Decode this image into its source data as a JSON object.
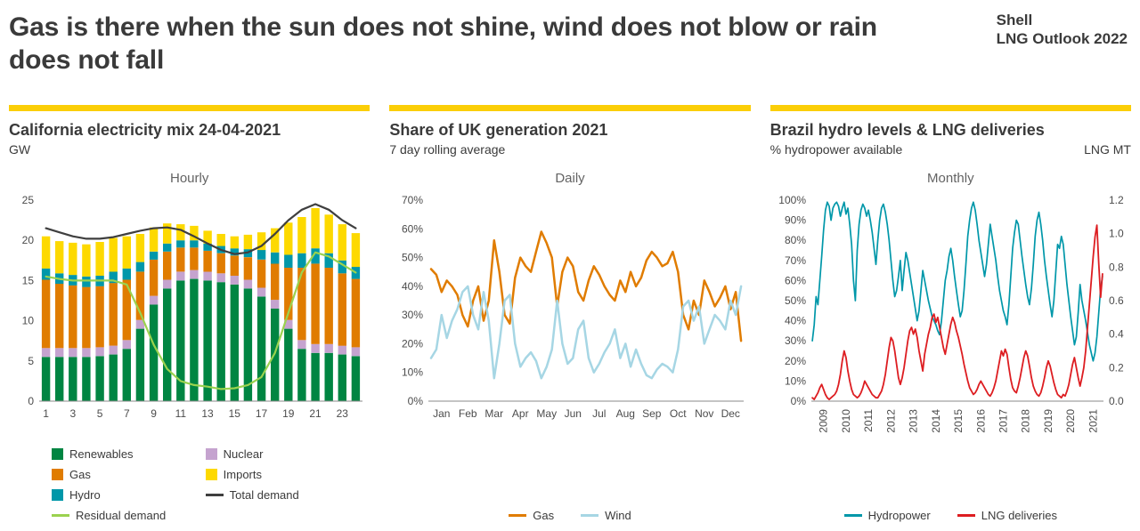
{
  "header": {
    "title": "Gas is there when the sun does not shine, wind does not blow or rain does not fall",
    "brand_line1": "Shell",
    "brand_line2": "LNG Outlook 2022"
  },
  "colors": {
    "accent_yellow": "#FBCE07",
    "renewables": "#008542",
    "nuclear": "#C5A3CF",
    "gas": "#E07C00",
    "hydro": "#0097A9",
    "imports": "#FDD900",
    "total_demand": "#3f3f3f",
    "residual_demand": "#9BD24F",
    "wind": "#A6D6E4",
    "hydropower": "#0097A9",
    "lng": "#DD1D21"
  },
  "chart_data": [
    {
      "id": "california-mix",
      "type": "bar",
      "title": "California electricity mix 24-04-2021",
      "subtitle": "GW",
      "panel_label": "Hourly",
      "x_count": 24,
      "categories": [
        1,
        2,
        3,
        4,
        5,
        6,
        7,
        8,
        9,
        10,
        11,
        12,
        13,
        14,
        15,
        16,
        17,
        18,
        19,
        20,
        21,
        22,
        23,
        24
      ],
      "ylim": [
        0,
        25
      ],
      "yticks": [
        [
          0,
          "0"
        ],
        [
          5,
          "5"
        ],
        [
          10,
          "10"
        ],
        [
          15,
          "15"
        ],
        [
          20,
          "20"
        ],
        [
          25,
          "25"
        ]
      ],
      "xlabels": [
        [
          0,
          "1"
        ],
        [
          2,
          "3"
        ],
        [
          4,
          "5"
        ],
        [
          6,
          "7"
        ],
        [
          8,
          "9"
        ],
        [
          10,
          "11"
        ],
        [
          12,
          "13"
        ],
        [
          14,
          "15"
        ],
        [
          16,
          "17"
        ],
        [
          18,
          "19"
        ],
        [
          20,
          "21"
        ],
        [
          22,
          "23"
        ]
      ],
      "series": [
        {
          "name": "Renewables",
          "kind": "bar",
          "color": "renewables",
          "values": [
            5.5,
            5.5,
            5.5,
            5.5,
            5.6,
            5.8,
            6.5,
            9.0,
            12.0,
            14.0,
            15.0,
            15.2,
            15.0,
            14.8,
            14.5,
            14.0,
            13.0,
            11.5,
            9.0,
            6.5,
            6.0,
            6.0,
            5.8,
            5.6
          ]
        },
        {
          "name": "Nuclear",
          "kind": "bar",
          "color": "nuclear",
          "values": [
            1.1,
            1.1,
            1.1,
            1.1,
            1.1,
            1.1,
            1.1,
            1.1,
            1.1,
            1.1,
            1.1,
            1.1,
            1.1,
            1.1,
            1.1,
            1.1,
            1.1,
            1.1,
            1.1,
            1.1,
            1.1,
            1.1,
            1.1,
            1.1
          ]
        },
        {
          "name": "Gas",
          "kind": "bar",
          "color": "gas",
          "values": [
            8.5,
            8.0,
            7.8,
            7.6,
            7.6,
            7.8,
            7.5,
            6.0,
            4.5,
            3.5,
            3.0,
            2.8,
            2.6,
            2.5,
            2.5,
            2.8,
            3.5,
            4.5,
            6.5,
            9.0,
            10.0,
            9.5,
            9.0,
            8.5
          ]
        },
        {
          "name": "Hydro",
          "kind": "bar",
          "color": "hydro",
          "values": [
            1.4,
            1.3,
            1.3,
            1.3,
            1.3,
            1.4,
            1.4,
            1.2,
            1.0,
            1.0,
            0.9,
            0.9,
            0.9,
            0.9,
            0.9,
            1.0,
            1.2,
            1.4,
            1.6,
            1.8,
            1.9,
            1.8,
            1.6,
            1.5
          ]
        },
        {
          "name": "Imports",
          "kind": "bar",
          "color": "imports",
          "values": [
            4.0,
            4.0,
            4.0,
            4.0,
            4.2,
            4.2,
            4.0,
            3.5,
            3.0,
            2.5,
            2.0,
            1.8,
            1.6,
            1.5,
            1.5,
            1.8,
            2.2,
            3.0,
            4.0,
            4.5,
            5.0,
            4.8,
            4.5,
            4.2
          ]
        },
        {
          "name": "Total demand",
          "kind": "line",
          "color": "total_demand",
          "width": 2.2,
          "values": [
            21.5,
            21.0,
            20.5,
            20.2,
            20.2,
            20.4,
            20.8,
            21.2,
            21.5,
            21.6,
            21.3,
            20.5,
            19.6,
            18.8,
            18.3,
            18.5,
            19.3,
            20.8,
            22.5,
            23.8,
            24.5,
            23.8,
            22.5,
            21.5
          ]
        },
        {
          "name": "Residual demand",
          "kind": "line",
          "color": "residual_demand",
          "width": 2.2,
          "values": [
            15.5,
            15.2,
            15.0,
            15.0,
            15.0,
            15.0,
            14.5,
            11.0,
            7.0,
            4.0,
            2.5,
            2.0,
            1.8,
            1.5,
            1.6,
            2.0,
            3.0,
            6.0,
            11.0,
            16.0,
            18.5,
            18.0,
            17.0,
            16.0
          ]
        }
      ],
      "legend": [
        {
          "label": "Renewables",
          "color": "renewables",
          "swatch": "square"
        },
        {
          "label": "Nuclear",
          "color": "nuclear",
          "swatch": "square"
        },
        {
          "label": "Gas",
          "color": "gas",
          "swatch": "square"
        },
        {
          "label": "Imports",
          "color": "imports",
          "swatch": "square"
        },
        {
          "label": "Hydro",
          "color": "hydro",
          "swatch": "square"
        },
        {
          "label": "Total demand",
          "color": "total_demand",
          "swatch": "line"
        },
        {
          "label": "Residual demand",
          "color": "residual_demand",
          "swatch": "line"
        }
      ]
    },
    {
      "id": "uk-generation-share",
      "type": "line",
      "title": "Share of UK generation 2021",
      "subtitle": "7 day rolling average",
      "panel_label": "Daily",
      "x_count": 60,
      "ylim": [
        0,
        70
      ],
      "yticks": [
        [
          0,
          "0%"
        ],
        [
          10,
          "10%"
        ],
        [
          20,
          "20%"
        ],
        [
          30,
          "30%"
        ],
        [
          40,
          "40%"
        ],
        [
          50,
          "50%"
        ],
        [
          60,
          "60%"
        ],
        [
          70,
          "70%"
        ]
      ],
      "xlabels": [
        [
          2,
          "Jan"
        ],
        [
          7,
          "Feb"
        ],
        [
          12,
          "Mar"
        ],
        [
          17,
          "Apr"
        ],
        [
          22,
          "May"
        ],
        [
          27,
          "Jun"
        ],
        [
          32,
          "Jul"
        ],
        [
          37,
          "Aug"
        ],
        [
          42,
          "Sep"
        ],
        [
          47,
          "Oct"
        ],
        [
          52,
          "Nov"
        ],
        [
          57,
          "Dec"
        ]
      ],
      "series": [
        {
          "name": "Gas",
          "kind": "line",
          "color": "gas",
          "width": 2.5,
          "values": [
            46,
            44,
            38,
            42,
            40,
            37,
            30,
            26,
            35,
            40,
            28,
            35,
            56,
            45,
            30,
            27,
            43,
            50,
            47,
            45,
            52,
            59,
            55,
            50,
            33,
            45,
            50,
            47,
            38,
            35,
            42,
            47,
            44,
            40,
            37,
            35,
            42,
            38,
            45,
            40,
            43,
            49,
            52,
            50,
            47,
            48,
            52,
            45,
            30,
            25,
            35,
            30,
            42,
            38,
            33,
            36,
            40,
            32,
            38,
            21
          ]
        },
        {
          "name": "Wind",
          "kind": "line",
          "color": "wind",
          "width": 2.5,
          "values": [
            15,
            18,
            30,
            22,
            28,
            32,
            38,
            40,
            30,
            25,
            38,
            28,
            8,
            20,
            35,
            37,
            20,
            12,
            15,
            17,
            14,
            8,
            12,
            18,
            35,
            20,
            13,
            15,
            25,
            28,
            15,
            10,
            13,
            17,
            20,
            25,
            15,
            20,
            12,
            18,
            13,
            9,
            8,
            11,
            13,
            12,
            10,
            18,
            33,
            35,
            28,
            33,
            20,
            25,
            30,
            28,
            25,
            35,
            30,
            40
          ]
        }
      ],
      "legend": [
        {
          "label": "Gas",
          "color": "gas",
          "swatch": "line"
        },
        {
          "label": "Wind",
          "color": "wind",
          "swatch": "line"
        }
      ]
    },
    {
      "id": "brazil-hydro-lng",
      "type": "line",
      "title": "Brazil hydro levels & LNG deliveries",
      "subtitle": "% hydropower available",
      "subtitle_right": "LNG MT",
      "panel_label": "Monthly",
      "x_count": 156,
      "rotate_x": true,
      "ylim": [
        0,
        100
      ],
      "y2lim": [
        0,
        1.2
      ],
      "yticks": [
        [
          0,
          "0%"
        ],
        [
          10,
          "10%"
        ],
        [
          20,
          "20%"
        ],
        [
          30,
          "30%"
        ],
        [
          40,
          "40%"
        ],
        [
          50,
          "50%"
        ],
        [
          60,
          "60%"
        ],
        [
          70,
          "70%"
        ],
        [
          80,
          "80%"
        ],
        [
          90,
          "90%"
        ],
        [
          100,
          "100%"
        ]
      ],
      "y2ticks": [
        [
          0,
          "0.0"
        ],
        [
          0.2,
          "0.2"
        ],
        [
          0.4,
          "0.4"
        ],
        [
          0.6,
          "0.6"
        ],
        [
          0.8,
          "0.8"
        ],
        [
          1.0,
          "1.0"
        ],
        [
          1.2,
          "1.2"
        ]
      ],
      "xlabels": [
        [
          6,
          "2009"
        ],
        [
          18,
          "2010"
        ],
        [
          30,
          "2011"
        ],
        [
          42,
          "2012"
        ],
        [
          54,
          "2013"
        ],
        [
          66,
          "2014"
        ],
        [
          78,
          "2015"
        ],
        [
          90,
          "2016"
        ],
        [
          102,
          "2017"
        ],
        [
          114,
          "2018"
        ],
        [
          126,
          "2019"
        ],
        [
          138,
          "2020"
        ],
        [
          150,
          "2021"
        ]
      ],
      "series": [
        {
          "name": "Hydropower",
          "kind": "line",
          "color": "hydropower",
          "width": 1.7,
          "values": [
            30,
            38,
            52,
            48,
            60,
            72,
            85,
            95,
            99,
            97,
            90,
            96,
            98,
            99,
            97,
            92,
            96,
            99,
            93,
            96,
            88,
            78,
            60,
            50,
            75,
            88,
            95,
            98,
            96,
            92,
            95,
            90,
            84,
            76,
            68,
            80,
            90,
            96,
            98,
            94,
            88,
            80,
            70,
            60,
            52,
            55,
            62,
            70,
            55,
            65,
            74,
            70,
            64,
            58,
            52,
            46,
            40,
            45,
            55,
            65,
            60,
            55,
            50,
            46,
            42,
            40,
            38,
            35,
            33,
            40,
            50,
            60,
            65,
            72,
            76,
            70,
            62,
            55,
            48,
            42,
            45,
            55,
            68,
            82,
            90,
            96,
            99,
            95,
            88,
            80,
            74,
            68,
            62,
            68,
            78,
            88,
            82,
            76,
            70,
            62,
            55,
            50,
            45,
            42,
            38,
            48,
            62,
            76,
            84,
            90,
            88,
            80,
            72,
            65,
            58,
            52,
            48,
            56,
            68,
            82,
            90,
            94,
            88,
            80,
            70,
            62,
            55,
            48,
            42,
            50,
            64,
            78,
            76,
            82,
            78,
            68,
            58,
            50,
            42,
            35,
            28,
            32,
            44,
            58,
            50,
            45,
            40,
            34,
            28,
            24,
            20,
            24,
            32,
            44,
            56,
            62
          ]
        },
        {
          "name": "LNG deliveries",
          "kind": "line",
          "color": "lng",
          "width": 1.8,
          "axis": "y2",
          "values": [
            0.02,
            0.01,
            0.03,
            0.05,
            0.08,
            0.1,
            0.07,
            0.04,
            0.02,
            0.01,
            0.02,
            0.03,
            0.04,
            0.06,
            0.1,
            0.16,
            0.24,
            0.3,
            0.26,
            0.18,
            0.12,
            0.07,
            0.04,
            0.03,
            0.02,
            0.03,
            0.05,
            0.08,
            0.12,
            0.1,
            0.08,
            0.06,
            0.04,
            0.03,
            0.02,
            0.02,
            0.04,
            0.06,
            0.1,
            0.16,
            0.24,
            0.32,
            0.38,
            0.36,
            0.3,
            0.22,
            0.14,
            0.1,
            0.14,
            0.2,
            0.28,
            0.36,
            0.42,
            0.44,
            0.4,
            0.43,
            0.38,
            0.3,
            0.24,
            0.18,
            0.28,
            0.34,
            0.4,
            0.44,
            0.5,
            0.52,
            0.47,
            0.5,
            0.44,
            0.38,
            0.32,
            0.28,
            0.34,
            0.4,
            0.46,
            0.5,
            0.47,
            0.42,
            0.38,
            0.33,
            0.28,
            0.22,
            0.17,
            0.12,
            0.08,
            0.06,
            0.04,
            0.05,
            0.07,
            0.1,
            0.12,
            0.1,
            0.08,
            0.06,
            0.04,
            0.03,
            0.05,
            0.08,
            0.12,
            0.18,
            0.24,
            0.3,
            0.27,
            0.31,
            0.28,
            0.2,
            0.13,
            0.08,
            0.06,
            0.05,
            0.09,
            0.14,
            0.2,
            0.26,
            0.3,
            0.27,
            0.21,
            0.14,
            0.09,
            0.06,
            0.04,
            0.03,
            0.05,
            0.09,
            0.14,
            0.2,
            0.24,
            0.21,
            0.16,
            0.11,
            0.07,
            0.04,
            0.03,
            0.02,
            0.04,
            0.03,
            0.06,
            0.1,
            0.16,
            0.22,
            0.26,
            0.2,
            0.14,
            0.09,
            0.14,
            0.2,
            0.3,
            0.44,
            0.58,
            0.72,
            0.86,
            0.98,
            1.05,
            0.82,
            0.62,
            0.76
          ]
        }
      ],
      "legend": [
        {
          "label": "Hydropower",
          "color": "hydropower",
          "swatch": "line"
        },
        {
          "label": "LNG deliveries",
          "color": "lng",
          "swatch": "line"
        }
      ]
    }
  ]
}
